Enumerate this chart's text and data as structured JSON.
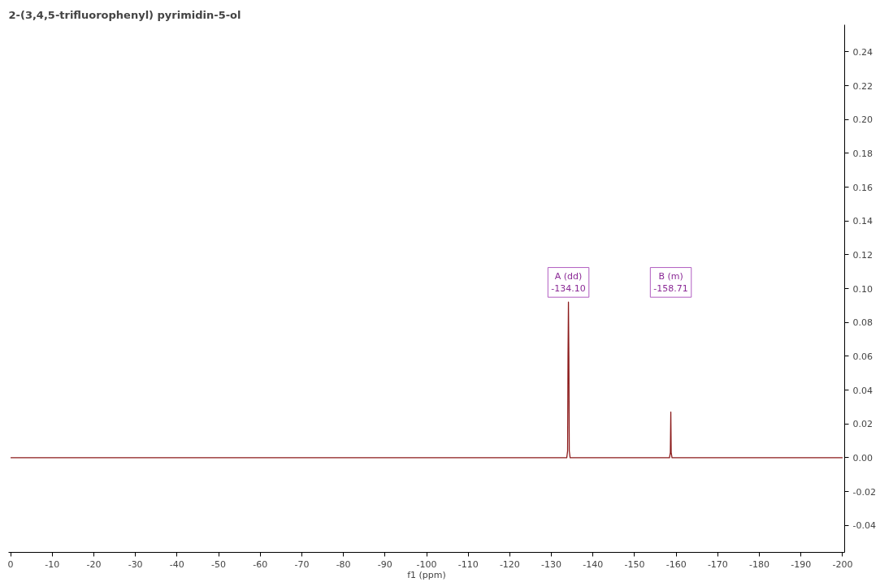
{
  "chart_data": {
    "type": "line",
    "title": "2-(3,4,5-trifluorophenyl) pyrimidin-5-ol",
    "xlabel": "f1 (ppm)",
    "x": [
      0,
      -133.7,
      -133.9,
      -134.0,
      -134.1,
      -134.2,
      -134.3,
      -134.5,
      -158.4,
      -158.6,
      -158.71,
      -158.8,
      -159.0,
      -200
    ],
    "series": [
      {
        "color": "#8b1a1a",
        "values": [
          0,
          0,
          0.004,
          0.06,
          0.092,
          0.06,
          0.004,
          0,
          0,
          0.003,
          0.027,
          0.003,
          0,
          0
        ]
      }
    ],
    "xlim": [
      0.5,
      -200.5
    ],
    "ylim": [
      -0.056,
      0.256
    ],
    "xticks": [
      0,
      -10,
      -20,
      -30,
      -40,
      -50,
      -60,
      -70,
      -80,
      -90,
      -100,
      -110,
      -120,
      -130,
      -140,
      -150,
      -160,
      -170,
      -180,
      -190,
      -200
    ],
    "yticks": [
      {
        "value": -0.04,
        "label": "-0.04"
      },
      {
        "value": -0.02,
        "label": "-0.02"
      },
      {
        "value": 0,
        "label": "0.00"
      },
      {
        "value": 0.02,
        "label": "0.02"
      },
      {
        "value": 0.04,
        "label": "0.04"
      },
      {
        "value": 0.06,
        "label": "0.06"
      },
      {
        "value": 0.08,
        "label": "0.08"
      },
      {
        "value": 0.1,
        "label": "0.10"
      },
      {
        "value": 0.12,
        "label": "0.12"
      },
      {
        "value": 0.14,
        "label": "0.14"
      },
      {
        "value": 0.16,
        "label": "0.16"
      },
      {
        "value": 0.18,
        "label": "0.18"
      },
      {
        "value": 0.2,
        "label": "0.20"
      },
      {
        "value": 0.22,
        "label": "0.22"
      },
      {
        "value": 0.24,
        "label": "0.24"
      }
    ],
    "annotations": [
      "A (dd)\n-134.10",
      "B (m)\n-158.71"
    ],
    "grid": false
  }
}
